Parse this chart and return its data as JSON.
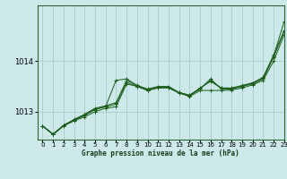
{
  "title": "Graphe pression niveau de la mer (hPa)",
  "background_color": "#cce8e8",
  "grid_color": "#aacccc",
  "line_color": "#1a5c1a",
  "marker_color": "#1a5c1a",
  "xlim": [
    -0.5,
    23
  ],
  "ylim": [
    1012.45,
    1015.1
  ],
  "yticks": [
    1013,
    1014
  ],
  "xticks": [
    0,
    1,
    2,
    3,
    4,
    5,
    6,
    7,
    8,
    9,
    10,
    11,
    12,
    13,
    14,
    15,
    16,
    17,
    18,
    19,
    20,
    21,
    22,
    23
  ],
  "series": [
    [
      1012.72,
      1012.55,
      1012.72,
      1012.82,
      1012.9,
      1013.0,
      1013.07,
      1013.1,
      1013.55,
      1013.5,
      1013.42,
      1013.47,
      1013.47,
      1013.37,
      1013.3,
      1013.42,
      1013.42,
      1013.42,
      1013.43,
      1013.47,
      1013.53,
      1013.62,
      1014.0,
      1014.52
    ],
    [
      1012.72,
      1012.56,
      1012.73,
      1012.85,
      1012.95,
      1013.07,
      1013.12,
      1013.18,
      1013.62,
      1013.52,
      1013.45,
      1013.5,
      1013.5,
      1013.38,
      1013.33,
      1013.47,
      1013.6,
      1013.47,
      1013.47,
      1013.52,
      1013.57,
      1013.68,
      1014.12,
      1014.6
    ],
    [
      1012.72,
      1012.56,
      1012.73,
      1012.83,
      1012.93,
      1013.04,
      1013.1,
      1013.62,
      1013.65,
      1013.52,
      1013.43,
      1013.48,
      1013.48,
      1013.37,
      1013.32,
      1013.45,
      1013.65,
      1013.45,
      1013.45,
      1013.5,
      1013.55,
      1013.65,
      1014.08,
      1014.58
    ],
    [
      1012.72,
      1012.55,
      1012.73,
      1012.84,
      1012.94,
      1013.05,
      1013.1,
      1013.15,
      1013.58,
      1013.5,
      1013.43,
      1013.48,
      1013.48,
      1013.38,
      1013.32,
      1013.46,
      1013.62,
      1013.47,
      1013.46,
      1013.51,
      1013.57,
      1013.67,
      1014.1,
      1014.78
    ]
  ]
}
